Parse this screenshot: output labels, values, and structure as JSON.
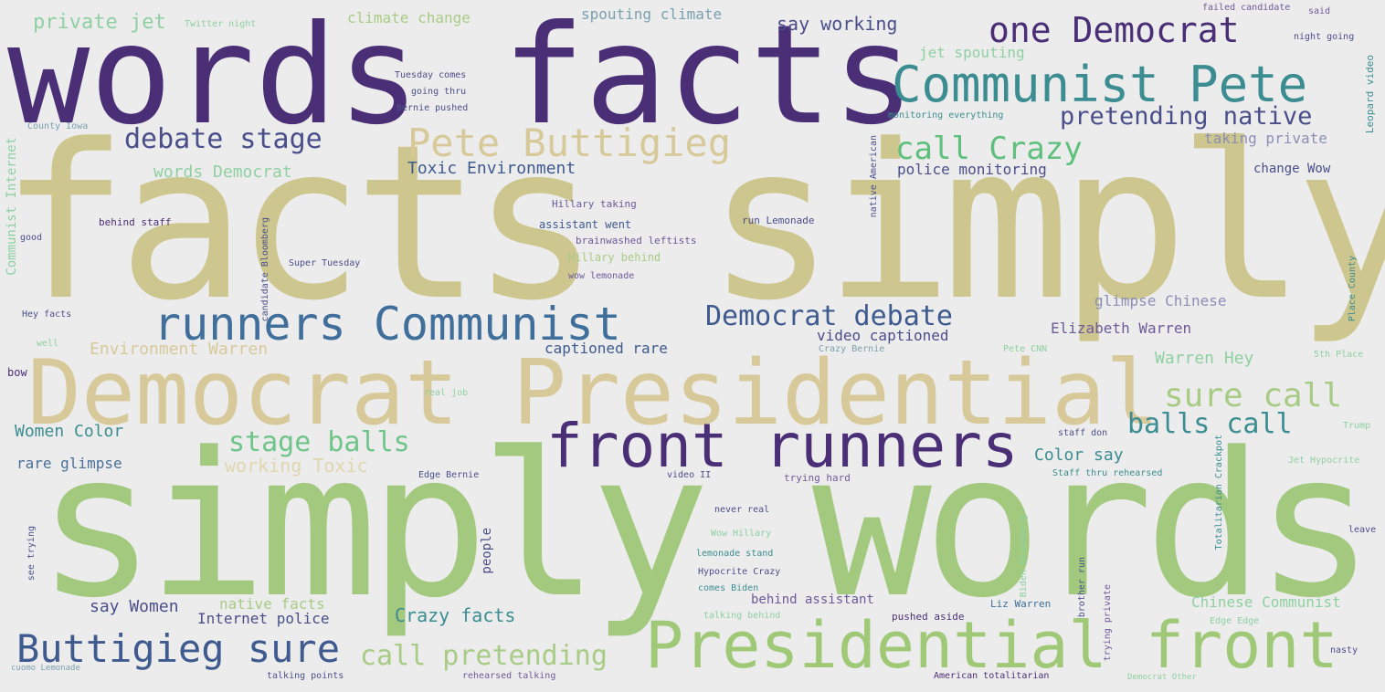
{
  "palette": {
    "background": "#ececec",
    "purple": "#4a2f76",
    "khaki": "#cdc68e",
    "olive": "#c9c487",
    "green": "#9fc877",
    "light_green": "#a8cc86",
    "teal": "#3b8d91",
    "blue": "#3f5a8f",
    "tan": "#d8c99a",
    "mint": "#8fd0a2"
  },
  "words": {
    "words_facts": "words facts",
    "facts_simply": "facts simply",
    "simply_words": "simply words",
    "democrat_presidential": "Democrat Presidential",
    "front_runners": "front runners",
    "presidential_front": "Presidential front",
    "runners_communist": "runners Communist",
    "communist_pete": "Communist Pete",
    "one_democrat": "one Democrat",
    "pete_buttigieg": "Pete Buttigieg",
    "buttigieg_sure": "Buttigieg sure",
    "debate_stage": "debate stage",
    "democrat_debate": "Democrat debate",
    "pretending_native": "pretending native",
    "call_crazy": "call Crazy",
    "sure_call": "sure call",
    "balls_call": "balls call",
    "stage_balls": "stage balls",
    "call_pretending": "call pretending",
    "private_jet": "private jet",
    "climate_change": "climate change",
    "spouting_climate": "spouting climate",
    "say_working": "say working",
    "jet_spouting": "jet spouting",
    "words_democrat": "words Democrat",
    "toxic_environment": "Toxic Environment",
    "police_monitoring": "police monitoring",
    "taking_private": "taking private",
    "change_wow": "change Wow",
    "glimpse_chinese": "glimpse Chinese",
    "elizabeth_warren": "Elizabeth Warren",
    "environment_warren": "Environment Warren",
    "video_captioned": "video captioned",
    "captioned_rare": "captioned rare",
    "warren_hey": "Warren Hey",
    "women_color": "Women Color",
    "color_say": "Color say",
    "rare_glimpse": "rare glimpse",
    "working_toxic": "working Toxic",
    "say_women": "say Women",
    "native_facts": "native facts",
    "internet_police": "Internet police",
    "crazy_facts": "Crazy facts",
    "behind_assistant": "behind assistant",
    "chinese_communist": "Chinese Communist",
    "communist_internet": "Communist Internet",
    "people": "people",
    "assistant_went": "assistant went",
    "hillary_behind": "Hillary behind",
    "hillary_taking": "Hillary taking",
    "monitoring_everything": "monitoring everything",
    "twitter_night": "Twitter night",
    "failed_candidate": "failed candidate",
    "said": "said",
    "night_going": "night going",
    "tuesday_comes": "Tuesday comes",
    "going_thru": "going thru",
    "bernie_pushed": "Bernie pushed",
    "county_iowa": "County Iowa",
    "behind_staff": "behind staff",
    "super_tuesday": "Super Tuesday",
    "run_lemonade": "run Lemonade",
    "brainwashed_leftists": "brainwashed leftists",
    "crazy_bernie": "Crazy Bernie",
    "real_job": "real job",
    "staff_don": "staff don",
    "trying_hard": "trying hard",
    "staff_thru_rehearsed": "Staff thru rehearsed",
    "jet_hypocrite": "Jet Hypocrite",
    "hypocrite_crazy": "Hypocrite Crazy",
    "comes_biden": "comes Biden",
    "talking_behind": "talking behind",
    "pushed_aside": "pushed aside",
    "liz_warren": "Liz Warren",
    "edge_edge": "Edge Edge",
    "talking_points": "talking points",
    "rehearsed_talking": "rehearsed talking",
    "american_totalitarian": "American totalitarian",
    "democrat_other": "Democrat Other",
    "cuomo_lemonade": "cuomo Lemonade",
    "bow": "bow",
    "good": "good",
    "well": "well",
    "see_trying": "see trying",
    "hey_facts": "Hey facts",
    "candidate_bloomberg": "candidate Bloomberg",
    "leopard_video": "Leopard video",
    "place_county": "Place County",
    "totalitarian_crackpot": "Totalitarian Crackpot",
    "trump": "Trump",
    "leave": "leave",
    "video_ii": "video II",
    "edge_bernie": "Edge Bernie",
    "lemonade_stand": "lemonade stand",
    "wow_hillary": "Wow Hillary",
    "never_real": "never real",
    "wow_lemonade": "wow lemonade",
    "biden_bloomberg": "Biden Bloomberg",
    "brother_run": "brother run",
    "trying_private": "trying private",
    "native_american": "native American",
    "pete_cnn": "Pete CNN",
    "5th_place": "5th Place",
    "nasty": "nasty"
  }
}
